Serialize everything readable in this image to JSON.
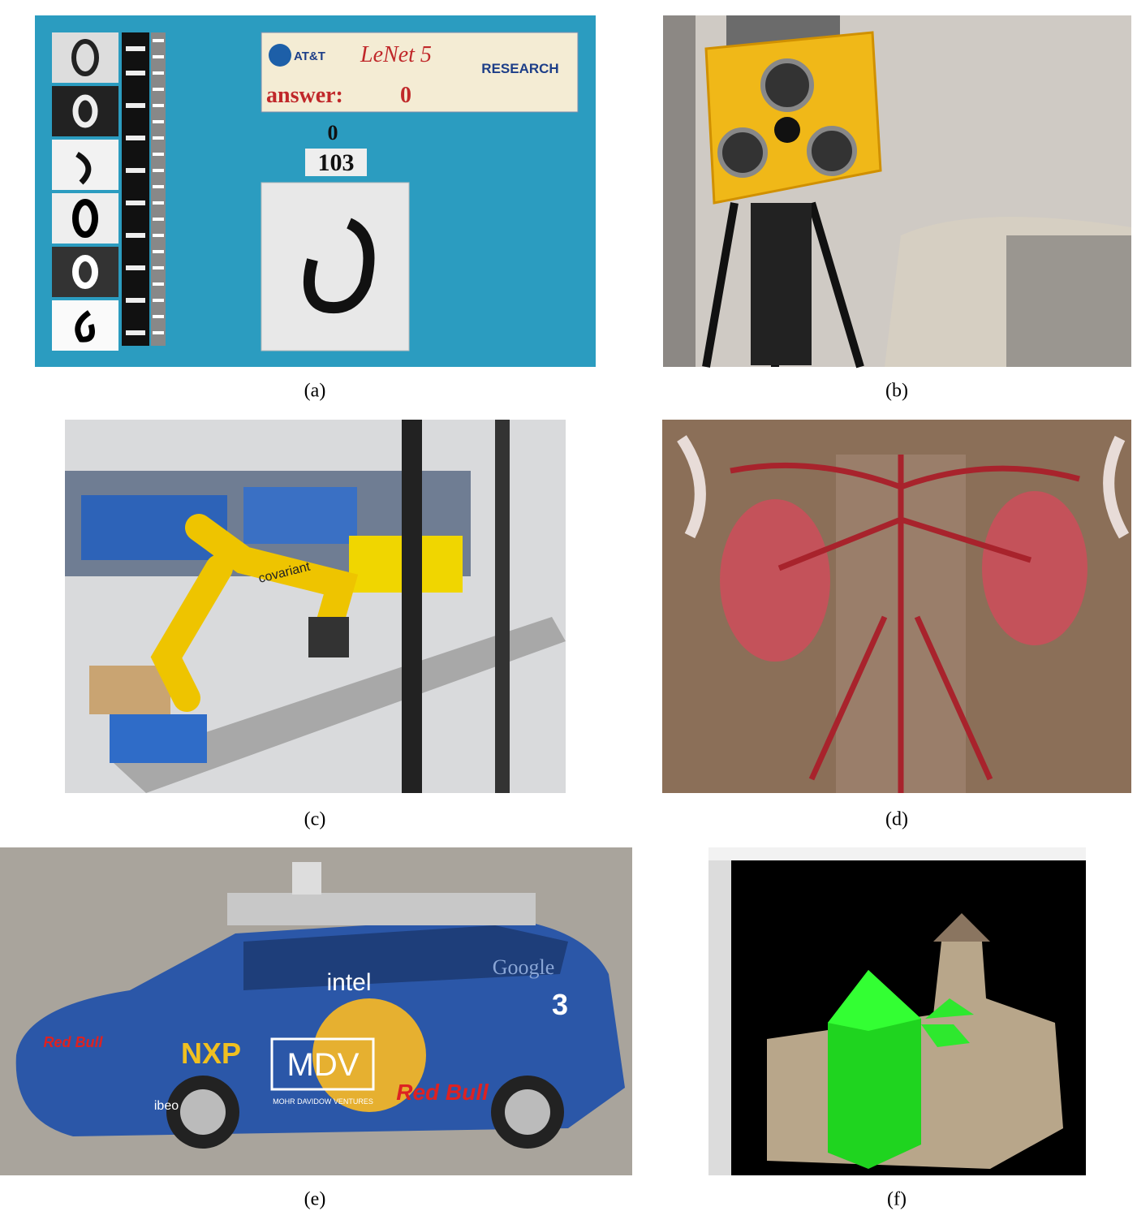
{
  "panels": [
    {
      "caption": "(a)",
      "texts": [
        "AT&T",
        "LeNet 5",
        "RESEARCH",
        "answer:",
        "0",
        "0",
        "103"
      ]
    },
    {
      "caption": "(b)"
    },
    {
      "caption": "(c)",
      "texts": [
        "covariant"
      ]
    },
    {
      "caption": "(d)"
    },
    {
      "caption": "(e)",
      "texts": [
        "intel",
        "MDV",
        "MOHR DAVIDOW VENTURES",
        "Red Bull",
        "Red Bull",
        "NXP",
        "Google",
        "3",
        "ibeo"
      ]
    },
    {
      "caption": "(f)"
    }
  ]
}
